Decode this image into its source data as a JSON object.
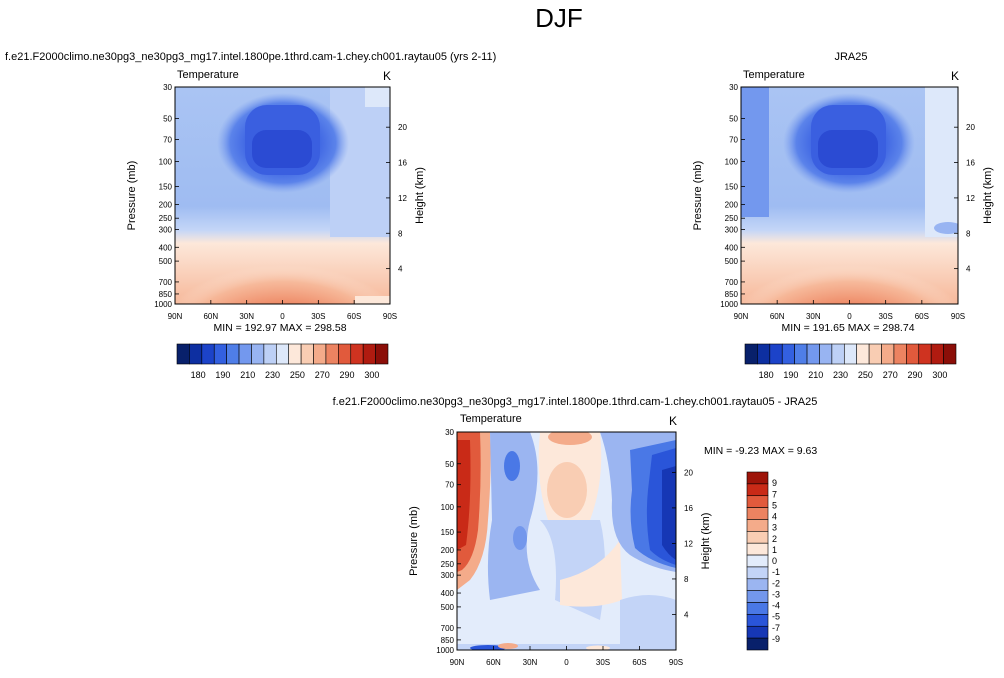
{
  "page_title": "DJF",
  "panels": [
    {
      "title": "f.e21.F2000climo.ne30pg3_ne30pg3_mg17.intel.1800pe.1thrd.cam-1.chey.ch001.raytau05 (yrs 2-11)",
      "field_label": "Temperature",
      "unit_label": "K",
      "stats": "MIN = 192.97   MAX = 298.58"
    },
    {
      "title": "JRA25",
      "field_label": "Temperature",
      "unit_label": "K",
      "stats": "MIN = 191.65   MAX = 298.74"
    },
    {
      "title": "f.e21.F2000climo.ne30pg3_ne30pg3_mg17.intel.1800pe.1thrd.cam-1.chey.ch001.raytau05 - JRA25",
      "field_label": "Temperature",
      "unit_label": "K",
      "stats": "MIN =  -9.23   MAX =   9.63"
    }
  ],
  "colorbar_main": {
    "colors": [
      "#08206b",
      "#0d2fa1",
      "#1c43c9",
      "#3360e0",
      "#4f7ee8",
      "#7398ee",
      "#98b4f2",
      "#bdd0f6",
      "#dde8fa",
      "#fde8da",
      "#f9cdb3",
      "#f4ab8a",
      "#ec8361",
      "#e15a3c",
      "#cf3320",
      "#b01b10",
      "#8b0e08"
    ],
    "labels": [
      "180",
      "190",
      "210",
      "230",
      "250",
      "270",
      "290",
      "300"
    ]
  },
  "colorbar_diff": {
    "colors": [
      "#08206b",
      "#1637b5",
      "#2a55d9",
      "#4a78e6",
      "#7397ec",
      "#9bb5f1",
      "#c3d4f7",
      "#e3ecfb",
      "#fde8da",
      "#f9cdb3",
      "#f4ab8a",
      "#ec8361",
      "#e15a3c",
      "#c92a17",
      "#9e1409"
    ],
    "labels": [
      "-9",
      "-7",
      "-5",
      "-4",
      "-3",
      "-2",
      "-1",
      "0",
      "1",
      "2",
      "3",
      "4",
      "5",
      "7",
      "9"
    ]
  },
  "chart_data": [
    {
      "type": "heatmap",
      "title": "f.e21.F2000climo.ne30pg3_ne30pg3_mg17.intel.1800pe.1thrd.cam-1.chey.ch001.raytau05 (yrs 2-11)",
      "field": "Temperature",
      "units": "K",
      "x": [
        "90N",
        "60N",
        "30N",
        "0",
        "30S",
        "60S",
        "90S"
      ],
      "y": [
        30,
        50,
        70,
        100,
        150,
        200,
        250,
        300,
        400,
        500,
        700,
        850,
        1000
      ],
      "xlabel": "",
      "ylabel": "Pressure (mb)",
      "y2label": "Height (km)",
      "y2ticks": [
        4,
        8,
        12,
        16,
        20
      ],
      "y_scale": "log-pressure",
      "min": 192.97,
      "max": 298.58
    },
    {
      "type": "heatmap",
      "title": "JRA25",
      "field": "Temperature",
      "units": "K",
      "x": [
        "90N",
        "60N",
        "30N",
        "0",
        "30S",
        "60S",
        "90S"
      ],
      "y": [
        30,
        50,
        70,
        100,
        150,
        200,
        250,
        300,
        400,
        500,
        700,
        850,
        1000
      ],
      "xlabel": "",
      "ylabel": "Pressure (mb)",
      "y2label": "Height (km)",
      "y2ticks": [
        4,
        8,
        12,
        16,
        20
      ],
      "y_scale": "log-pressure",
      "min": 191.65,
      "max": 298.74
    },
    {
      "type": "heatmap",
      "title": "f.e21.F2000climo.ne30pg3_ne30pg3_mg17.intel.1800pe.1thrd.cam-1.chey.ch001.raytau05 - JRA25",
      "field": "Temperature",
      "units": "K",
      "x": [
        "90N",
        "60N",
        "30N",
        "0",
        "30S",
        "60S",
        "90S"
      ],
      "y": [
        30,
        50,
        70,
        100,
        150,
        200,
        250,
        300,
        400,
        500,
        700,
        850,
        1000
      ],
      "xlabel": "",
      "ylabel": "Pressure (mb)",
      "y2label": "Height (km)",
      "y2ticks": [
        4,
        8,
        12,
        16,
        20
      ],
      "y_scale": "log-pressure",
      "min": -9.23,
      "max": 9.63
    }
  ]
}
